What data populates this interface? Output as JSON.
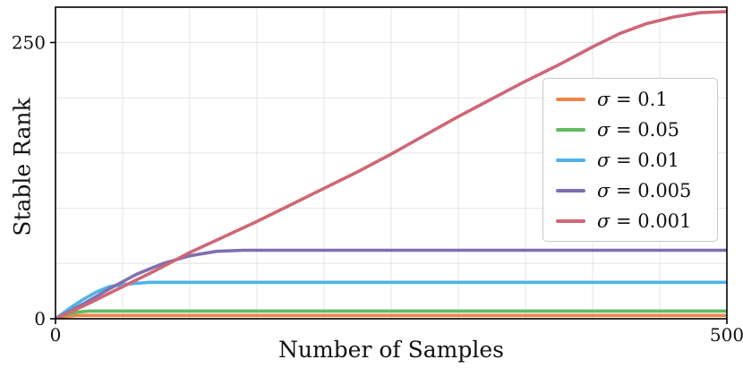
{
  "chart_data": {
    "type": "line",
    "title": "",
    "xlabel": "Number of Samples",
    "ylabel": "Stable Rank",
    "xlim": [
      0,
      500
    ],
    "ylim": [
      0,
      282
    ],
    "xticks": [
      0,
      500
    ],
    "yticks": [
      0,
      250
    ],
    "xgrid": [
      0,
      50,
      100,
      150,
      200,
      250,
      300,
      350,
      400,
      450,
      500
    ],
    "ygrid": [
      0,
      50,
      100,
      150,
      200,
      250
    ],
    "grid": true,
    "grid_color": "#e4e4e4",
    "frame_color": "#000000",
    "legend_position": "center-right",
    "series": [
      {
        "name": "σ = 0.1",
        "color": "#ed854a",
        "points": [
          [
            0,
            0
          ],
          [
            8,
            2
          ],
          [
            16,
            3
          ],
          [
            500,
            3
          ]
        ]
      },
      {
        "name": "σ = 0.05",
        "color": "#61ba63",
        "points": [
          [
            0,
            0
          ],
          [
            8,
            4
          ],
          [
            16,
            6
          ],
          [
            25,
            7
          ],
          [
            500,
            7
          ]
        ]
      },
      {
        "name": "σ = 0.01",
        "color": "#4fb3e8",
        "points": [
          [
            0,
            0
          ],
          [
            10,
            9
          ],
          [
            20,
            17
          ],
          [
            30,
            24
          ],
          [
            40,
            29
          ],
          [
            50,
            31
          ],
          [
            60,
            32
          ],
          [
            70,
            33
          ],
          [
            500,
            33
          ]
        ]
      },
      {
        "name": "σ = 0.005",
        "color": "#7f6faf",
        "points": [
          [
            0,
            0
          ],
          [
            20,
            13
          ],
          [
            40,
            27
          ],
          [
            60,
            40
          ],
          [
            80,
            50
          ],
          [
            100,
            57
          ],
          [
            120,
            61
          ],
          [
            140,
            62
          ],
          [
            500,
            62
          ]
        ]
      },
      {
        "name": "σ = 0.001",
        "color": "#ce6777",
        "points": [
          [
            0,
            0
          ],
          [
            25,
            14
          ],
          [
            50,
            29
          ],
          [
            75,
            44
          ],
          [
            100,
            60
          ],
          [
            125,
            74
          ],
          [
            150,
            88
          ],
          [
            175,
            103
          ],
          [
            200,
            118
          ],
          [
            225,
            133
          ],
          [
            250,
            149
          ],
          [
            275,
            166
          ],
          [
            300,
            183
          ],
          [
            325,
            199
          ],
          [
            350,
            215
          ],
          [
            375,
            230
          ],
          [
            400,
            246
          ],
          [
            420,
            258
          ],
          [
            440,
            267
          ],
          [
            460,
            273
          ],
          [
            480,
            277
          ],
          [
            500,
            278
          ]
        ]
      }
    ]
  }
}
